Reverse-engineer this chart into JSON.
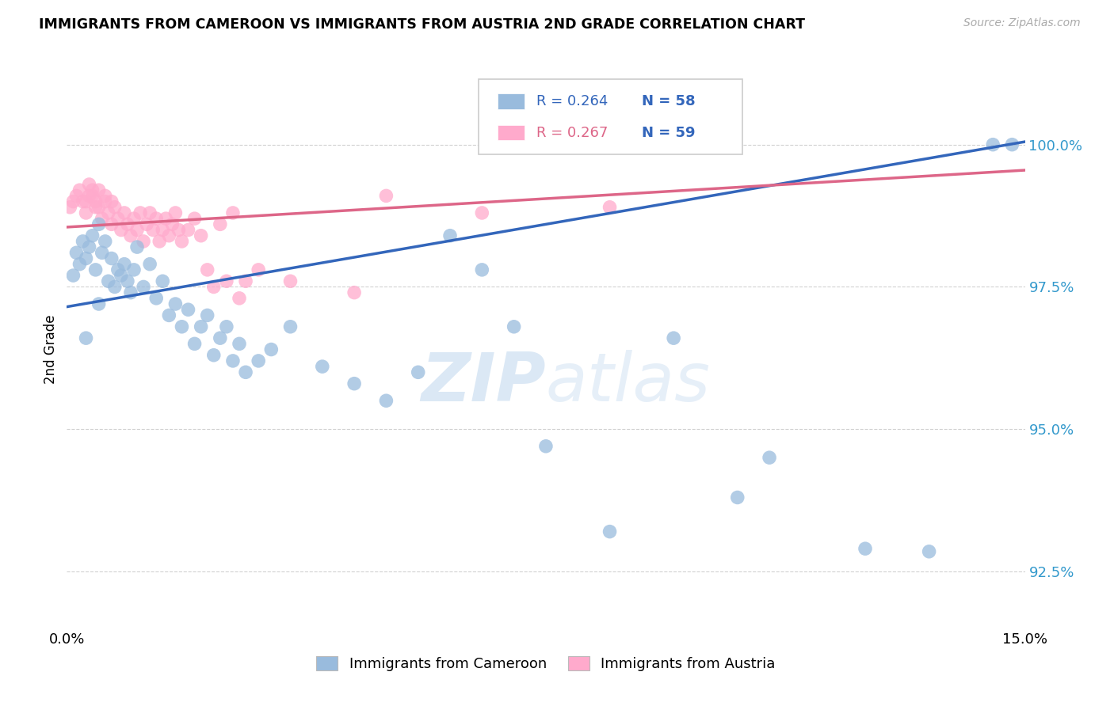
{
  "title": "IMMIGRANTS FROM CAMEROON VS IMMIGRANTS FROM AUSTRIA 2ND GRADE CORRELATION CHART",
  "source_text": "Source: ZipAtlas.com",
  "ylabel": "2nd Grade",
  "y_ticks": [
    92.5,
    95.0,
    97.5,
    100.0
  ],
  "y_tick_labels": [
    "92.5%",
    "95.0%",
    "97.5%",
    "100.0%"
  ],
  "xlim": [
    0.0,
    15.0
  ],
  "ylim": [
    91.5,
    101.3
  ],
  "legend_blue_label": "Immigrants from Cameroon",
  "legend_pink_label": "Immigrants from Austria",
  "blue_color": "#99BBDD",
  "pink_color": "#FFAACC",
  "line_blue_color": "#3366BB",
  "line_pink_color": "#DD6688",
  "watermark_zip": "ZIP",
  "watermark_atlas": "atlas",
  "blue_line_x": [
    0.0,
    15.0
  ],
  "blue_line_y": [
    97.15,
    100.05
  ],
  "pink_line_x": [
    0.0,
    15.0
  ],
  "pink_line_y": [
    98.55,
    99.55
  ],
  "blue_x": [
    0.1,
    0.15,
    0.2,
    0.25,
    0.3,
    0.35,
    0.4,
    0.45,
    0.5,
    0.55,
    0.6,
    0.65,
    0.7,
    0.75,
    0.8,
    0.85,
    0.9,
    0.95,
    1.0,
    1.05,
    1.1,
    1.2,
    1.3,
    1.4,
    1.5,
    1.6,
    1.7,
    1.8,
    1.9,
    2.0,
    2.1,
    2.2,
    2.3,
    2.4,
    2.5,
    2.6,
    2.7,
    2.8,
    3.0,
    3.2,
    3.5,
    4.0,
    4.5,
    5.0,
    5.5,
    6.0,
    6.5,
    7.0,
    7.5,
    8.5,
    9.5,
    10.5,
    11.0,
    12.5,
    13.5,
    14.5,
    14.8,
    0.3,
    0.5
  ],
  "blue_y": [
    97.7,
    98.1,
    97.9,
    98.3,
    98.0,
    98.2,
    98.4,
    97.8,
    98.6,
    98.1,
    98.3,
    97.6,
    98.0,
    97.5,
    97.8,
    97.7,
    97.9,
    97.6,
    97.4,
    97.8,
    98.2,
    97.5,
    97.9,
    97.3,
    97.6,
    97.0,
    97.2,
    96.8,
    97.1,
    96.5,
    96.8,
    97.0,
    96.3,
    96.6,
    96.8,
    96.2,
    96.5,
    96.0,
    96.2,
    96.4,
    96.8,
    96.1,
    95.8,
    95.5,
    96.0,
    98.4,
    97.8,
    96.8,
    94.7,
    93.2,
    96.6,
    93.8,
    94.5,
    92.9,
    92.85,
    100.0,
    100.0,
    96.6,
    97.2
  ],
  "pink_x": [
    0.05,
    0.1,
    0.15,
    0.2,
    0.25,
    0.3,
    0.35,
    0.4,
    0.45,
    0.5,
    0.55,
    0.6,
    0.65,
    0.7,
    0.75,
    0.8,
    0.85,
    0.9,
    0.95,
    1.0,
    1.05,
    1.1,
    1.15,
    1.2,
    1.25,
    1.3,
    1.35,
    1.4,
    1.45,
    1.5,
    1.55,
    1.6,
    1.65,
    1.7,
    1.75,
    1.8,
    1.9,
    2.0,
    2.1,
    2.2,
    2.3,
    2.4,
    2.5,
    2.6,
    2.7,
    2.8,
    3.0,
    3.5,
    4.5,
    5.0,
    6.5,
    8.5,
    0.3,
    0.35,
    0.4,
    0.45,
    0.5,
    0.6,
    0.7
  ],
  "pink_y": [
    98.9,
    99.0,
    99.1,
    99.2,
    99.0,
    98.8,
    99.3,
    99.1,
    98.9,
    99.2,
    98.7,
    99.0,
    98.8,
    98.6,
    98.9,
    98.7,
    98.5,
    98.8,
    98.6,
    98.4,
    98.7,
    98.5,
    98.8,
    98.3,
    98.6,
    98.8,
    98.5,
    98.7,
    98.3,
    98.5,
    98.7,
    98.4,
    98.6,
    98.8,
    98.5,
    98.3,
    98.5,
    98.7,
    98.4,
    97.8,
    97.5,
    98.6,
    97.6,
    98.8,
    97.3,
    97.6,
    97.8,
    97.6,
    97.4,
    99.1,
    98.8,
    98.9,
    99.0,
    99.1,
    99.2,
    99.0,
    98.9,
    99.1,
    99.0
  ]
}
